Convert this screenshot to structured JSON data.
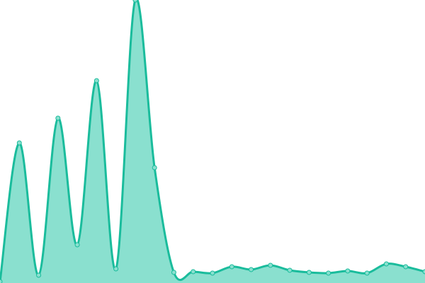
{
  "chart_data": {
    "type": "area",
    "title": "",
    "xlabel": "",
    "ylabel": "",
    "x": [
      0,
      1,
      2,
      3,
      4,
      5,
      6,
      7,
      8,
      9,
      10,
      11,
      12,
      13,
      14,
      15,
      16,
      17,
      18,
      19,
      20,
      21,
      22
    ],
    "values": [
      2,
      198,
      11,
      233,
      54,
      286,
      20,
      400,
      163,
      15,
      16,
      14,
      23,
      19,
      25,
      18,
      15,
      14,
      17,
      14,
      27,
      23,
      16
    ],
    "ylim": [
      0,
      400
    ],
    "grid": false,
    "axes_visible": false,
    "smooth": true,
    "colors": {
      "line": "#1abc9c",
      "fill": "#8ae0cf",
      "marker": "#8ae0cf"
    }
  }
}
